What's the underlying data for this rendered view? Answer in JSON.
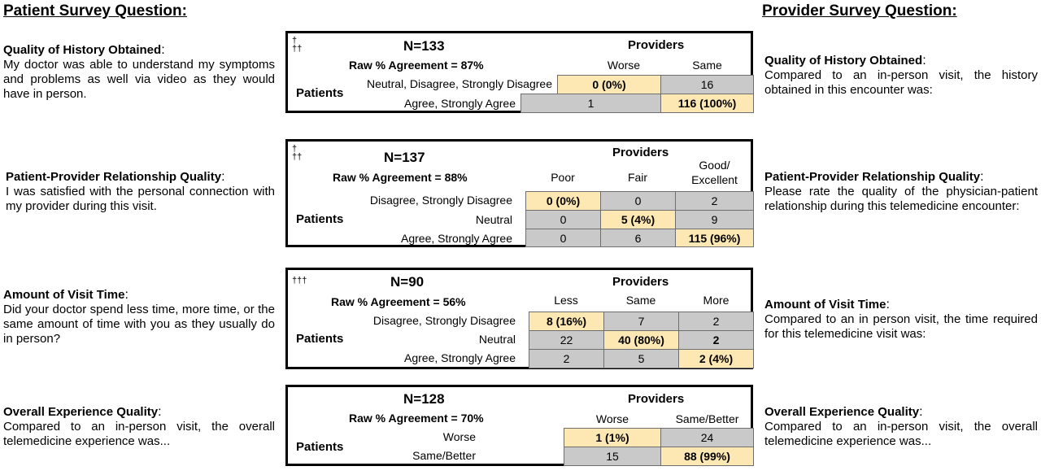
{
  "headers": {
    "patient": "Patient Survey Question:",
    "provider": "Provider Survey Question:"
  },
  "panels": [
    {
      "dagger": "†\n††",
      "n": "N=133",
      "raw": "Raw % Agreement = 87%",
      "providers": "Providers",
      "patients": "Patients",
      "cols": [
        "Worse",
        "Same"
      ],
      "rows": [
        {
          "label": "Neutral, Disagree, Strongly Disagree",
          "cells": [
            "0 (0%)",
            "16"
          ]
        },
        {
          "label": "Agree, Strongly Agree",
          "cells": [
            "1",
            "116 (100%)"
          ]
        }
      ],
      "patient_q": {
        "title": "Quality of History Obtained",
        "text": "My doctor was able to understand my symptoms and problems as well via video as they would have in person."
      },
      "provider_q": {
        "title": "Quality of History Obtained",
        "text": "Compared to an in-person visit, the history obtained in this encounter was:"
      }
    },
    {
      "dagger": "†\n††",
      "n": "N=137",
      "raw": "Raw % Agreement = 88%",
      "providers": "Providers",
      "patients": "Patients",
      "cols": [
        "Poor",
        "Fair",
        "Good/ Excellent"
      ],
      "rows": [
        {
          "label": "Disagree, Strongly Disagree",
          "cells": [
            "0 (0%)",
            "0",
            "2"
          ]
        },
        {
          "label": "Neutral",
          "cells": [
            "0",
            "5 (4%)",
            "9"
          ]
        },
        {
          "label": "Agree, Strongly Agree",
          "cells": [
            "0",
            "6",
            "115 (96%)"
          ]
        }
      ],
      "patient_q": {
        "title": "Patient-Provider Relationship Quality",
        "text": "I was satisfied with the personal connection with my provider during this visit."
      },
      "provider_q": {
        "title": "Patient-Provider Relationship Quality",
        "text": "Please rate the quality of the physician-patient relationship during this telemedicine encounter:"
      }
    },
    {
      "dagger": "†††",
      "n": "N=90",
      "raw": "Raw % Agreement = 56%",
      "providers": "Providers",
      "patients": "Patients",
      "cols": [
        "Less",
        "Same",
        "More"
      ],
      "rows": [
        {
          "label": "Disagree, Strongly Disagree",
          "cells": [
            "8 (16%)",
            "7",
            "2"
          ]
        },
        {
          "label": "Neutral",
          "cells": [
            "22",
            "40 (80%)",
            "2"
          ]
        },
        {
          "label": "Agree, Strongly Agree",
          "cells": [
            "2",
            "5",
            "2 (4%)"
          ]
        }
      ],
      "patient_q": {
        "title": "Amount of Visit Time",
        "text": "Did your doctor spend less time, more time, or the same amount of time with you as they usually do in person?"
      },
      "provider_q": {
        "title": "Amount of Visit Time",
        "text": "Compared to an in person visit, the time required for this telemedicine visit was:"
      }
    },
    {
      "dagger": "",
      "n": "N=128",
      "raw": "Raw % Agreement = 70%",
      "providers": "Providers",
      "patients": "Patients",
      "cols": [
        "Worse",
        "Same/Better"
      ],
      "rows": [
        {
          "label": "Worse",
          "cells": [
            "1 (1%)",
            "24"
          ]
        },
        {
          "label": "Same/Better",
          "cells": [
            "15",
            "88 (99%)"
          ]
        }
      ],
      "patient_q": {
        "title": "Overall Experience Quality",
        "text": "Compared to an in-person visit, the overall telemedicine experience was..."
      },
      "provider_q": {
        "title": "Overall Experience Quality",
        "text": "Compared to an in-person visit, the overall telemedicine experience was..."
      }
    }
  ],
  "colors": {
    "highlight": "#fde8b3",
    "cell": "#c9c9c9"
  }
}
